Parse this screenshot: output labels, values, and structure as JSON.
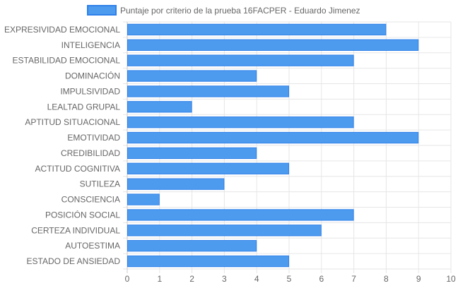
{
  "chart_data": {
    "type": "bar",
    "orientation": "horizontal",
    "categories": [
      "EXPRESIVIDAD EMOCIONAL",
      "INTELIGENCIA",
      "ESTABILIDAD EMOCIONAL",
      "DOMINACIÓN",
      "IMPULSIVIDAD",
      "LEALTAD GRUPAL",
      "APTITUD SITUACIONAL",
      "EMOTIVIDAD",
      "CREDIBILIDAD",
      "ACTITUD COGNITIVA",
      "SUTILEZA",
      "CONSCIENCIA",
      "POSICIÓN SOCIAL",
      "CERTEZA INDIVIDUAL",
      "AUTOESTIMA",
      "ESTADO DE ANSIEDAD"
    ],
    "series": [
      {
        "name": "Puntaje por criterio de la prueba 16FACPER - Eduardo Jimenez",
        "values": [
          8,
          9,
          7,
          4,
          5,
          2,
          7,
          9,
          4,
          5,
          3,
          1,
          7,
          6,
          4,
          5
        ],
        "color": "#4d9bef",
        "border_color": "#2f80ea"
      }
    ],
    "xlim": [
      0,
      10
    ],
    "x_ticks": [
      "0",
      "1",
      "2",
      "3",
      "4",
      "5",
      "6",
      "7",
      "8",
      "9",
      "10"
    ],
    "grid": true,
    "legend_position": "top-center"
  }
}
